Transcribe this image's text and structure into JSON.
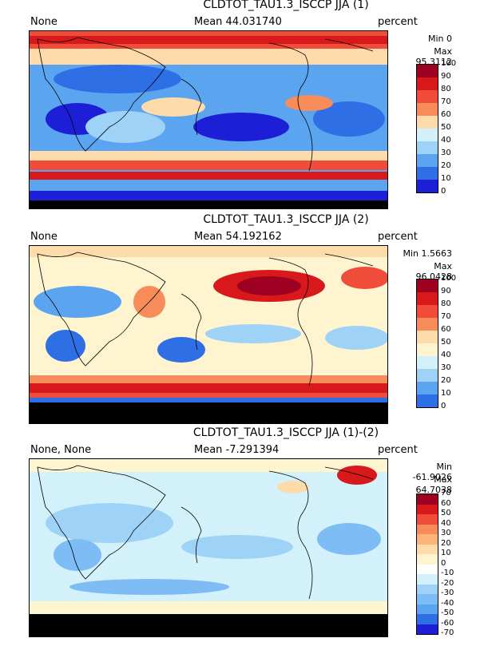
{
  "panels": [
    {
      "title": "CLDTOT_TAU1.3_ISCCP JJA (1)",
      "left_label": "None",
      "mean": "Mean 44.031740",
      "units": "percent",
      "min": "Min 0",
      "max": "Max 95.3112",
      "levels": [
        "100",
        "90",
        "80",
        "70",
        "60",
        "50",
        "40",
        "30",
        "20",
        "10",
        "0"
      ],
      "colors": [
        "#9e0021",
        "#d7191c",
        "#f04c3a",
        "#f78c5a",
        "#fddbab",
        "#d3f1fb",
        "#9fd2f7",
        "#5ba4f0",
        "#2f6fe6",
        "#1c1fd6"
      ]
    },
    {
      "title": "CLDTOT_TAU1.3_ISCCP JJA (2)",
      "left_label": "None",
      "mean": "Mean 54.192162",
      "units": "percent",
      "min": "Min 1.5663",
      "max": "Max 96.0428",
      "levels": [
        "100",
        "90",
        "80",
        "70",
        "60",
        "50",
        "40",
        "30",
        "20",
        "10",
        "0"
      ],
      "colors": [
        "#9e0021",
        "#d7191c",
        "#f04c3a",
        "#f78c5a",
        "#fddbab",
        "#fff4d0",
        "#d3f1fb",
        "#9fd2f7",
        "#5ba4f0",
        "#2f6fe6"
      ]
    },
    {
      "title": "CLDTOT_TAU1.3_ISCCP JJA (1)-(2)",
      "left_label": "None, None",
      "mean": "Mean -7.291394",
      "units": "percent",
      "min": "Min -61.9026",
      "max": "Max 64.7038",
      "levels": [
        "70",
        "60",
        "50",
        "40",
        "30",
        "20",
        "10",
        "0",
        "-10",
        "-20",
        "-30",
        "-40",
        "-50",
        "-60",
        "-70"
      ],
      "colors": [
        "#9e0021",
        "#d7191c",
        "#f04c3a",
        "#f78c5a",
        "#fcb47a",
        "#fddbab",
        "#fff4d0",
        "#ffffff",
        "#d3f1fb",
        "#9fd2f7",
        "#7dbcf4",
        "#5ba4f0",
        "#2f6fe6",
        "#1c1fd6"
      ]
    }
  ]
}
